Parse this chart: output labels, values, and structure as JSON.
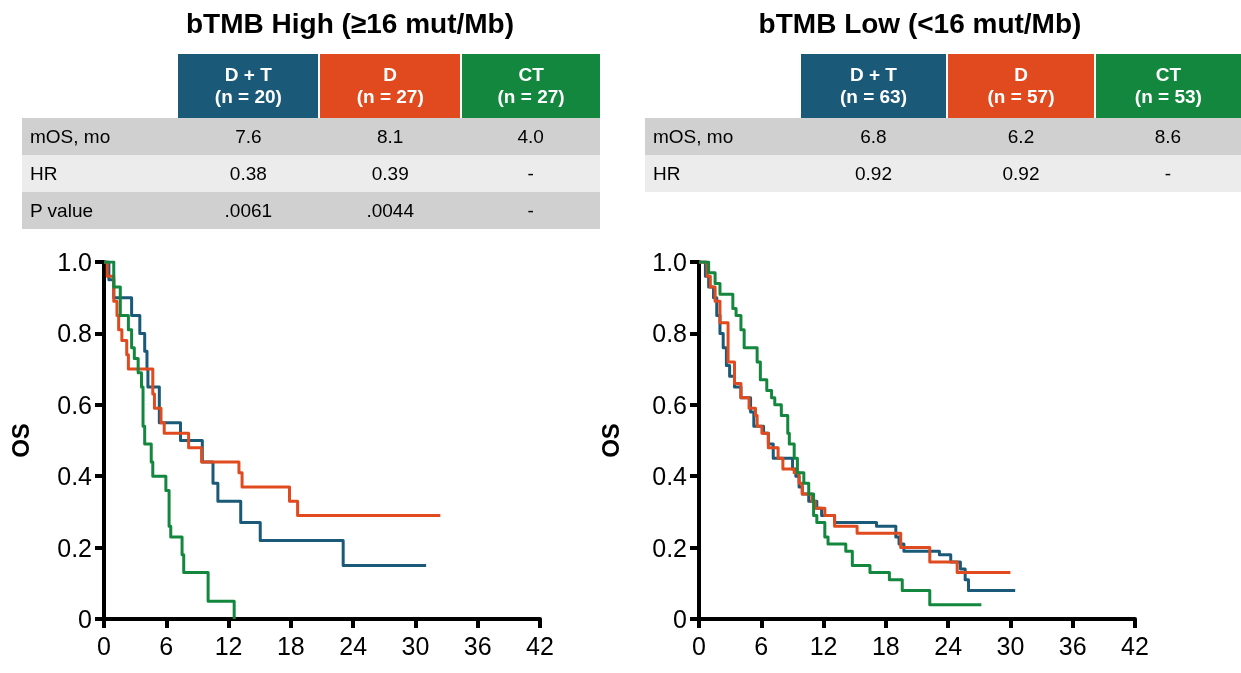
{
  "chart_data": [
    {
      "type": "step",
      "title": "bTMB High (≥16 mut/Mb)",
      "ylabel": "OS",
      "legend": "top",
      "marker": "none",
      "annotations": [
        "mOS, mo",
        "7.6",
        "8.1",
        "4.0",
        "HR",
        "0.38",
        "0.39",
        "-",
        "P value",
        ".0061",
        ".0044",
        "-"
      ],
      "xlim": [
        0,
        42
      ],
      "xticks": [
        0,
        6,
        12,
        18,
        24,
        30,
        36,
        42
      ],
      "ylim": [
        0,
        1
      ],
      "yticks": [
        0,
        0.2,
        0.4,
        0.6,
        0.8,
        {
          "value": 1,
          "label": "1.0"
        }
      ],
      "series": [
        {
          "name": "D + T\n(n = 20)",
          "color": "#1a5a78",
          "x": [
            0,
            0.47,
            0.94,
            2.66,
            3.45,
            3.92,
            4.14,
            4.23,
            5.33,
            7.37,
            9.47,
            10.5,
            10.97,
            13.17,
            15.05,
            23.04,
            31.03
          ],
          "values": [
            1,
            0.95,
            0.9,
            0.85,
            0.8,
            0.75,
            0.7,
            0.65,
            0.55,
            0.5,
            0.44,
            0.38,
            0.33,
            0.27,
            0.22,
            0.15,
            0.15
          ]
        },
        {
          "name": "D\n(n = 27)",
          "color": "#e04a1e",
          "x": [
            0,
            0.31,
            0.94,
            1.25,
            1.41,
            1.72,
            2.19,
            2.35,
            4.7,
            4.86,
            5.49,
            5.8,
            8.15,
            9.4,
            13.0,
            13.3,
            17.87,
            18.65,
            32.4
          ],
          "values": [
            1,
            0.96,
            0.89,
            0.85,
            0.81,
            0.78,
            0.74,
            0.7,
            0.63,
            0.59,
            0.55,
            0.52,
            0.48,
            0.44,
            0.41,
            0.37,
            0.33,
            0.29,
            0.29
          ]
        },
        {
          "name": "CT\n(n = 27)",
          "color": "#12873d",
          "x": [
            0,
            0.94,
            1.57,
            2.35,
            2.66,
            2.92,
            3.29,
            3.61,
            3.76,
            3.92,
            4.55,
            4.7,
            5.96,
            6.27,
            6.43,
            7.52,
            7.68,
            10.03,
            12.54
          ],
          "values": [
            1,
            0.93,
            0.85,
            0.81,
            0.76,
            0.73,
            0.69,
            0.65,
            0.54,
            0.49,
            0.44,
            0.4,
            0.36,
            0.26,
            0.23,
            0.18,
            0.13,
            0.05,
            0
          ]
        }
      ]
    },
    {
      "type": "step",
      "title": "bTMB Low (<16 mut/Mb)",
      "ylabel": "OS",
      "legend": "top",
      "marker": "none",
      "annotations": [
        "mOS, mo",
        "6.8",
        "6.2",
        "8.6",
        "HR",
        "0.92",
        "0.92",
        "-"
      ],
      "xlim": [
        0,
        42
      ],
      "xticks": [
        0,
        6,
        12,
        18,
        24,
        30,
        36,
        42
      ],
      "ylim": [
        0,
        1
      ],
      "yticks": [
        0,
        0.2,
        0.4,
        0.6,
        0.8,
        {
          "value": 1,
          "label": "1.0"
        }
      ],
      "series": [
        {
          "name": "D + T\n(n = 63)",
          "color": "#1a5a78",
          "x": [
            0,
            0.62,
            0.93,
            1.4,
            1.71,
            2.02,
            2.33,
            2.64,
            2.95,
            3.42,
            4.04,
            4.97,
            5.28,
            6.22,
            6.68,
            7.15,
            9.01,
            9.33,
            9.64,
            9.95,
            10.57,
            11.35,
            11.81,
            13.06,
            17.1,
            18.96,
            19.27,
            19.74,
            23.16,
            24.25,
            25.18,
            25.64,
            25.96,
            30.46
          ],
          "values": [
            1,
            0.96,
            0.93,
            0.9,
            0.85,
            0.8,
            0.76,
            0.71,
            0.68,
            0.65,
            0.62,
            0.58,
            0.54,
            0.52,
            0.49,
            0.45,
            0.42,
            0.4,
            0.37,
            0.35,
            0.33,
            0.31,
            0.29,
            0.27,
            0.26,
            0.23,
            0.21,
            0.19,
            0.18,
            0.16,
            0.14,
            0.11,
            0.08,
            0.08
          ]
        },
        {
          "name": "D\n(n = 57)",
          "color": "#e04a1e",
          "x": [
            0,
            0.78,
            1.09,
            1.55,
            2.02,
            2.8,
            3.42,
            4.04,
            4.82,
            5.44,
            5.6,
            6.06,
            6.68,
            7.62,
            8.08,
            9.17,
            9.64,
            9.95,
            10.88,
            11.19,
            12.12,
            13.06,
            15.23,
            19.43,
            22.23,
            24.87,
            30.0
          ],
          "values": [
            1,
            0.96,
            0.93,
            0.89,
            0.83,
            0.72,
            0.66,
            0.62,
            0.59,
            0.57,
            0.54,
            0.52,
            0.48,
            0.45,
            0.42,
            0.41,
            0.38,
            0.35,
            0.33,
            0.31,
            0.29,
            0.26,
            0.24,
            0.2,
            0.16,
            0.13,
            0.13
          ]
        },
        {
          "name": "CT\n(n = 53)",
          "color": "#12873d",
          "x": [
            0,
            0.93,
            1.55,
            2.02,
            3.26,
            3.57,
            4.04,
            4.35,
            5.6,
            5.91,
            6.53,
            6.99,
            7.3,
            7.93,
            8.55,
            8.7,
            9.17,
            9.48,
            10.1,
            10.57,
            11.04,
            11.35,
            12.12,
            12.43,
            14.14,
            14.77,
            16.47,
            18.34,
            19.58,
            22.23,
            27.2
          ],
          "values": [
            1,
            0.97,
            0.94,
            0.91,
            0.87,
            0.85,
            0.81,
            0.76,
            0.72,
            0.67,
            0.64,
            0.62,
            0.6,
            0.57,
            0.52,
            0.49,
            0.45,
            0.41,
            0.38,
            0.35,
            0.29,
            0.27,
            0.23,
            0.21,
            0.19,
            0.15,
            0.13,
            0.11,
            0.08,
            0.04,
            0.04
          ]
        }
      ]
    }
  ]
}
